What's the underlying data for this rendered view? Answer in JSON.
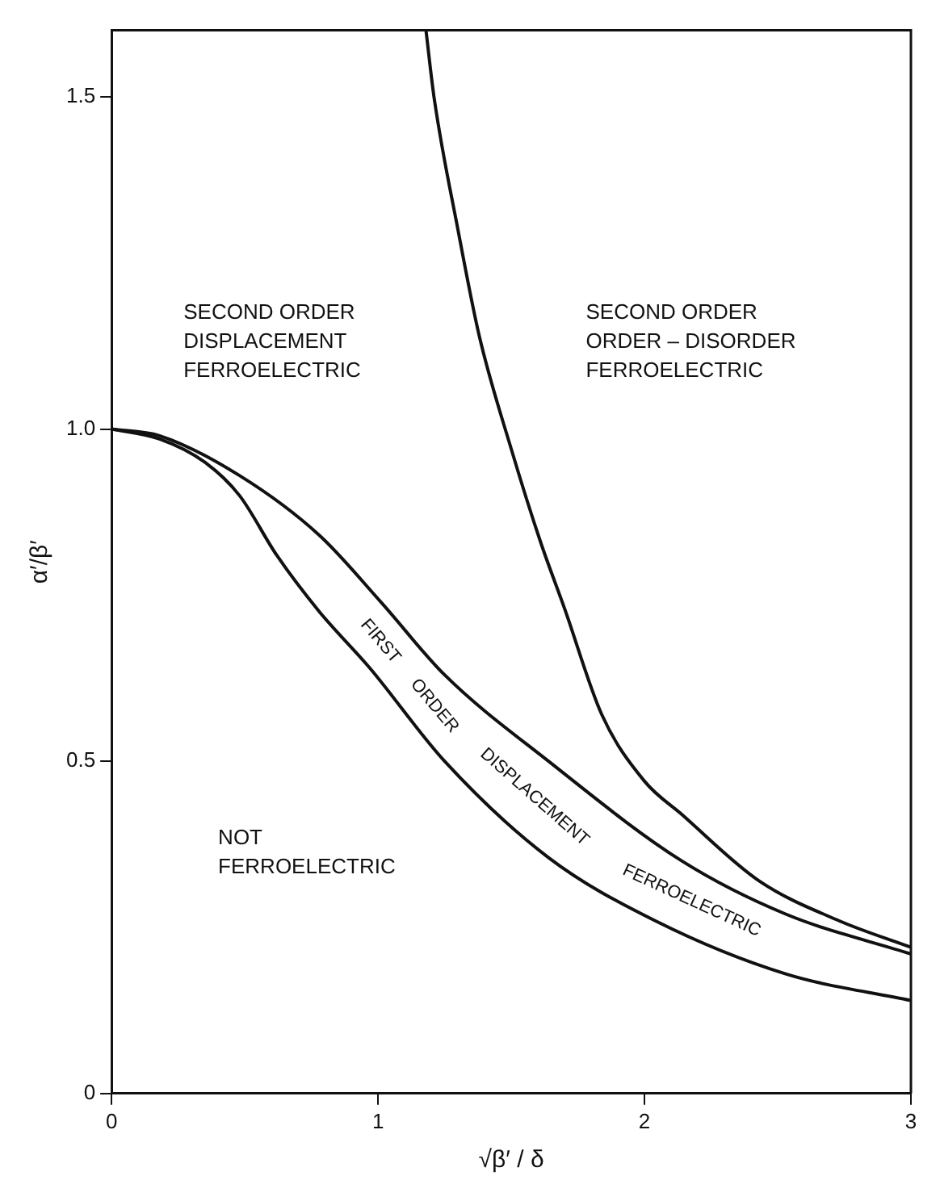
{
  "chart_data": {
    "type": "line",
    "xlabel": "√β′ / δ",
    "ylabel": "α′/β′",
    "xlim": [
      0,
      3
    ],
    "xticks": [
      0,
      1,
      2,
      3
    ],
    "ylim": [
      0,
      1.6
    ],
    "yticks": [
      0,
      0.5,
      {
        "value": 1,
        "label": "1.0"
      },
      1.5
    ],
    "grid": false,
    "legend": false,
    "marker": "none",
    "line_style": "solid",
    "series": [
      {
        "color": "#111111",
        "x": [
          1.18,
          1.21,
          1.3,
          1.38,
          1.5,
          1.61,
          1.7,
          1.84,
          2,
          2.14,
          2.43,
          2.73,
          3
        ],
        "values": [
          1.6,
          1.5,
          1.3,
          1.14,
          0.97,
          0.83,
          0.73,
          0.57,
          0.47,
          0.42,
          0.32,
          0.26,
          0.22
        ]
      },
      {
        "color": "#111111",
        "x": [
          0,
          0.18,
          0.48,
          0.78,
          1.01,
          1.25,
          1.64,
          2.14,
          2.53,
          3
        ],
        "values": [
          1,
          0.99,
          0.93,
          0.84,
          0.74,
          0.63,
          0.5,
          0.35,
          0.27,
          0.21
        ]
      },
      {
        "color": "#111111",
        "x": [
          0,
          0.18,
          0.35,
          0.48,
          0.62,
          0.78,
          0.97,
          1.25,
          1.64,
          2.04,
          2.53,
          3
        ],
        "values": [
          1,
          0.985,
          0.95,
          0.9,
          0.81,
          0.725,
          0.64,
          0.5,
          0.355,
          0.26,
          0.18,
          0.14
        ]
      }
    ],
    "annotations": [
      "SECOND ORDER\nDISPLACEMENT\nFERROELECTRIC",
      "SECOND ORDER\nORDER – DISORDER\nFERROELECTRIC",
      "NOT\nFERROELECTRIC",
      "FIRST ORDER DISPLACEMENT FERROELECTRIC"
    ]
  }
}
